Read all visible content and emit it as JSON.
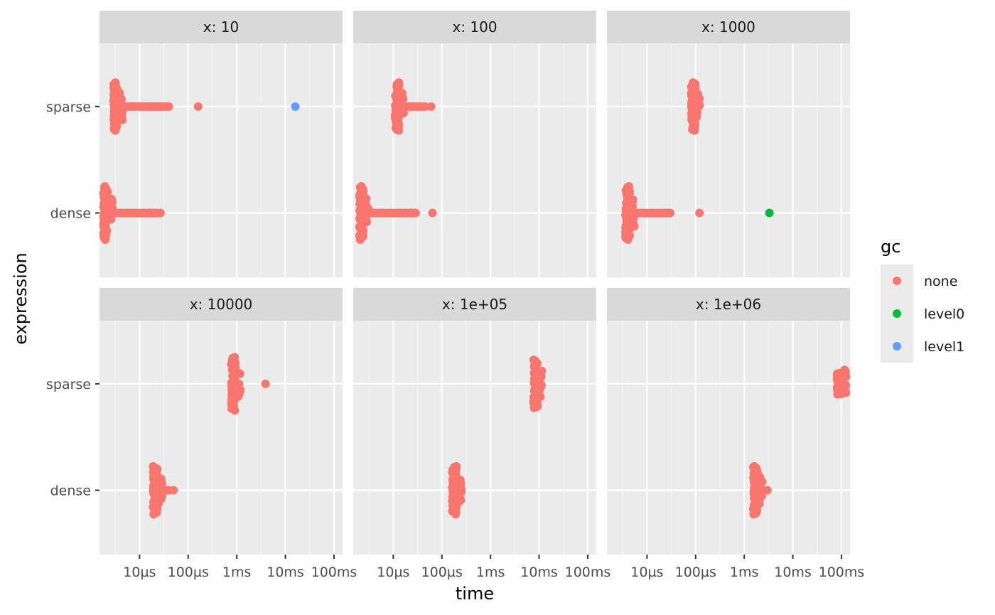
{
  "chart_data": {
    "type": "scatter",
    "facet_label": "x",
    "x_axis": {
      "label": "time",
      "scale": "log10",
      "unit": "seconds",
      "range": [
        1.5e-06,
        0.15
      ],
      "ticks": [
        1e-05,
        0.0001,
        0.001,
        0.01,
        0.1
      ],
      "tick_labels": [
        "10µs",
        "100µs",
        "1ms",
        "10ms",
        "100ms"
      ]
    },
    "y_axis": {
      "label": "expression",
      "categories": [
        "dense",
        "sparse"
      ]
    },
    "legend": {
      "title": "gc",
      "position": "right",
      "entries": [
        {
          "label": "none",
          "color": "#F8766D"
        },
        {
          "label": "level0",
          "color": "#00BA38"
        },
        {
          "label": "level1",
          "color": "#619CFF"
        }
      ]
    },
    "grid": true,
    "facets": [
      {
        "title": "x: 10",
        "series": [
          {
            "expression": "sparse",
            "gc": "none",
            "cluster_time": 3.2e-06,
            "spread": 0.45,
            "times": [
              5e-06,
              6.5e-06,
              8e-06,
              1.1e-05,
              1.5e-05,
              2e-05,
              2.6e-05,
              4e-05,
              0.00016
            ]
          },
          {
            "expression": "sparse",
            "gc": "level1",
            "times": [
              0.016
            ]
          },
          {
            "expression": "dense",
            "gc": "none",
            "cluster_time": 2e-06,
            "spread": 0.5,
            "times": [
              4e-06,
              6e-06,
              8e-06,
              1.2e-05,
              1.6e-05,
              2e-05,
              2.3e-05,
              2.7e-05
            ]
          }
        ]
      },
      {
        "title": "x: 100",
        "series": [
          {
            "expression": "sparse",
            "gc": "none",
            "cluster_time": 1.2e-05,
            "spread": 0.45,
            "times": [
              1.5e-05,
              2e-05,
              2.6e-05,
              3.5e-05,
              4.5e-05,
              6e-05
            ]
          },
          {
            "expression": "dense",
            "gc": "none",
            "cluster_time": 2.2e-06,
            "spread": 0.5,
            "times": [
              4e-06,
              6e-06,
              9e-06,
              1.3e-05,
              1.8e-05,
              2.3e-05,
              2.9e-05,
              6.4e-05
            ]
          }
        ]
      },
      {
        "title": "x: 1000",
        "series": [
          {
            "expression": "sparse",
            "gc": "none",
            "cluster_time": 9e-05,
            "spread": 0.45,
            "times": [
              0.0001,
              0.000115
            ]
          },
          {
            "expression": "dense",
            "gc": "none",
            "cluster_time": 4e-06,
            "spread": 0.5,
            "times": [
              6e-06,
              9e-06,
              1.3e-05,
              1.8e-05,
              2.4e-05,
              3e-05,
              0.00012
            ]
          },
          {
            "expression": "dense",
            "gc": "level0",
            "times": [
              0.0033
            ]
          }
        ]
      },
      {
        "title": "x: 10000",
        "series": [
          {
            "expression": "sparse",
            "gc": "none",
            "cluster_time": 0.00085,
            "spread": 0.5,
            "times": [
              0.00095,
              0.0011,
              0.0039
            ]
          },
          {
            "expression": "dense",
            "gc": "none",
            "cluster_time": 2.1e-05,
            "spread": 0.45,
            "times": [
              2.6e-05,
              3.2e-05,
              4e-05,
              5e-05
            ]
          }
        ]
      },
      {
        "title": "x: 1e+05",
        "series": [
          {
            "expression": "sparse",
            "gc": "none",
            "cluster_time": 0.0085,
            "spread": 0.45,
            "times": [
              0.0095
            ]
          },
          {
            "expression": "dense",
            "gc": "none",
            "cluster_time": 0.00018,
            "spread": 0.45,
            "times": [
              0.00021,
              0.00025
            ]
          }
        ]
      },
      {
        "title": "x: 1e+06",
        "series": [
          {
            "expression": "sparse",
            "gc": "none",
            "cluster_time": 0.09,
            "spread": 0.2,
            "times": [
              0.095
            ]
          },
          {
            "expression": "dense",
            "gc": "none",
            "cluster_time": 0.0017,
            "spread": 0.45,
            "times": [
              0.002,
              0.0025,
              0.003
            ]
          }
        ]
      }
    ]
  }
}
